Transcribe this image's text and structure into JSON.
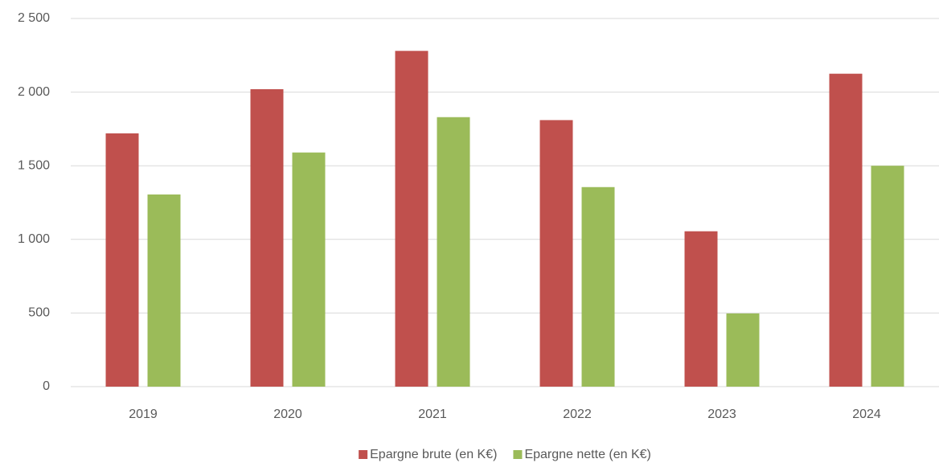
{
  "chart_data": {
    "type": "bar",
    "categories": [
      "2019",
      "2020",
      "2021",
      "2022",
      "2023",
      "2024"
    ],
    "series": [
      {
        "name": "Epargne brute (en K€)",
        "color": "#c0504d",
        "values": [
          1720,
          2020,
          2280,
          1810,
          1055,
          2125
        ]
      },
      {
        "name": "Epargne nette (en K€)",
        "color": "#9bbb59",
        "values": [
          1305,
          1590,
          1830,
          1355,
          497,
          1500
        ]
      }
    ],
    "ylim": [
      0,
      2500
    ],
    "yticks": [
      0,
      500,
      {
        "value": 1000,
        "label": "1 000"
      },
      {
        "value": 1500,
        "label": "1 500"
      },
      {
        "value": 2000,
        "label": "2 000"
      },
      {
        "value": 2500,
        "label": "2 500"
      }
    ],
    "grid": true,
    "legend": "bottom"
  }
}
